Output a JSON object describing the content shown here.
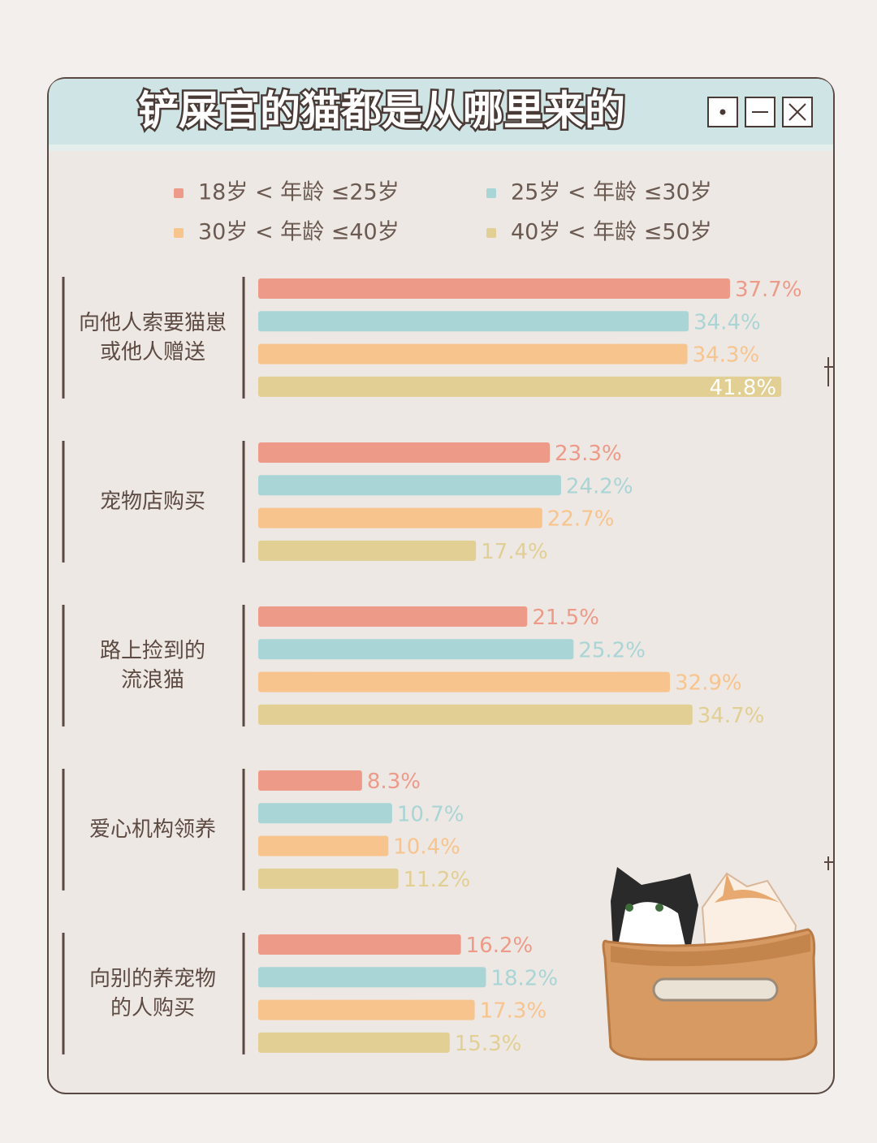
{
  "chart_data": {
    "type": "bar",
    "orientation": "horizontal",
    "title": "铲屎官的猫都是从哪里来的",
    "categories": [
      "向他人索要猫崽\n或他人赠送",
      "宠物店购买",
      "路上捡到的\n流浪猫",
      "爱心机构领养",
      "向别的养宠物\n的人购买"
    ],
    "series": [
      {
        "name": "18岁 < 年龄 ≤25岁",
        "color": "#ee9a88",
        "values": [
          37.7,
          23.3,
          21.5,
          8.3,
          16.2
        ],
        "value_labels": [
          "37.7%",
          "23.3%",
          "21.5%",
          "8.3%",
          "16.2%"
        ]
      },
      {
        "name": "25岁 < 年龄 ≤30岁",
        "color": "#a9d5d6",
        "values": [
          34.4,
          24.2,
          25.2,
          10.7,
          18.2
        ],
        "value_labels": [
          "34.4%",
          "24.2%",
          "25.2%",
          "10.7%",
          "18.2%"
        ]
      },
      {
        "name": "30岁 < 年龄 ≤40岁",
        "color": "#f8c48e",
        "values": [
          34.3,
          22.7,
          32.9,
          10.4,
          17.3
        ],
        "value_labels": [
          "34.3%",
          "22.7%",
          "32.9%",
          "10.4%",
          "17.3%"
        ]
      },
      {
        "name": "40岁 < 年龄 ≤50岁",
        "color": "#e2cf94",
        "values": [
          41.8,
          17.4,
          34.7,
          11.2,
          15.3
        ],
        "value_labels": [
          "41.8%",
          "17.4%",
          "34.7%",
          "11.2%",
          "15.3%"
        ]
      }
    ]
  }
}
